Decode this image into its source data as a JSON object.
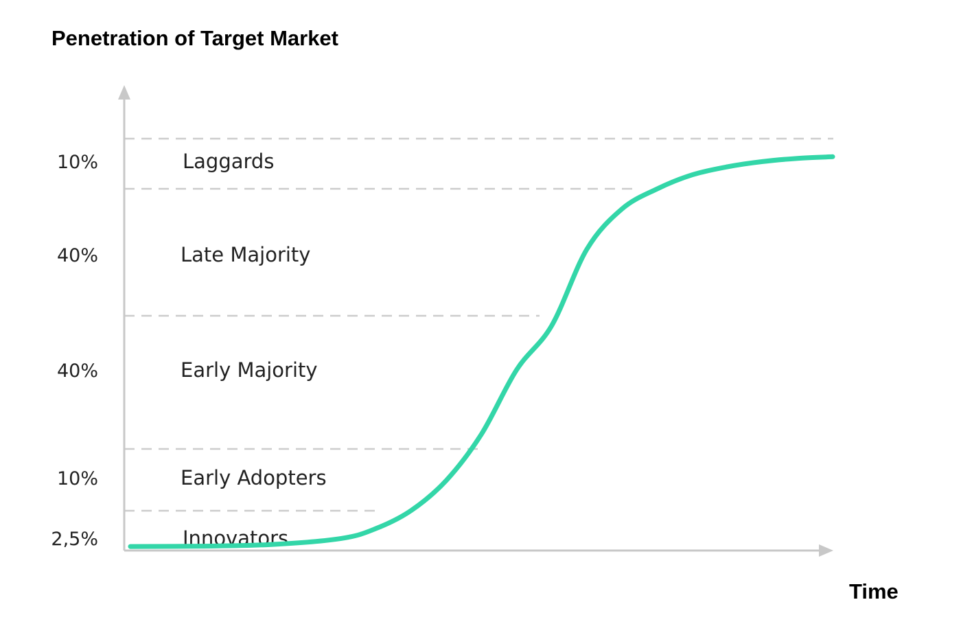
{
  "chart_data": {
    "type": "line",
    "title": "Penetration of Target Market",
    "xlabel": "Time",
    "ylabel": "",
    "segments": [
      {
        "label": "Innovators",
        "percent": "2,5%",
        "value": 2.5
      },
      {
        "label": "Early Adopters",
        "percent": "10%",
        "value": 10
      },
      {
        "label": "Early Majority",
        "percent": "40%",
        "value": 40
      },
      {
        "label": "Late Majority",
        "percent": "40%",
        "value": 40
      },
      {
        "label": "Laggards",
        "percent": "10%",
        "value": 10
      }
    ],
    "series": [
      {
        "values_description": "S-shaped adoption curve rising from the Innovators band to the Laggards band over time",
        "x": [
          0,
          10,
          20,
          30,
          35,
          40,
          45,
          50,
          55,
          60,
          65,
          70,
          75,
          80,
          85,
          90,
          95,
          100
        ],
        "y": [
          1.0,
          1.1,
          1.5,
          3.0,
          5.5,
          10.0,
          17.5,
          29.0,
          45.0,
          56.0,
          75.0,
          85.0,
          90.0,
          93.5,
          95.5,
          96.8,
          97.6,
          98.0
        ]
      }
    ],
    "ylim": [
      0,
      102.5
    ],
    "xlim": [
      0,
      100
    ],
    "grid": false,
    "colors": {
      "curve": "#33d6a8",
      "axis": "#c8c8c8",
      "divider": "#cccccc"
    }
  }
}
